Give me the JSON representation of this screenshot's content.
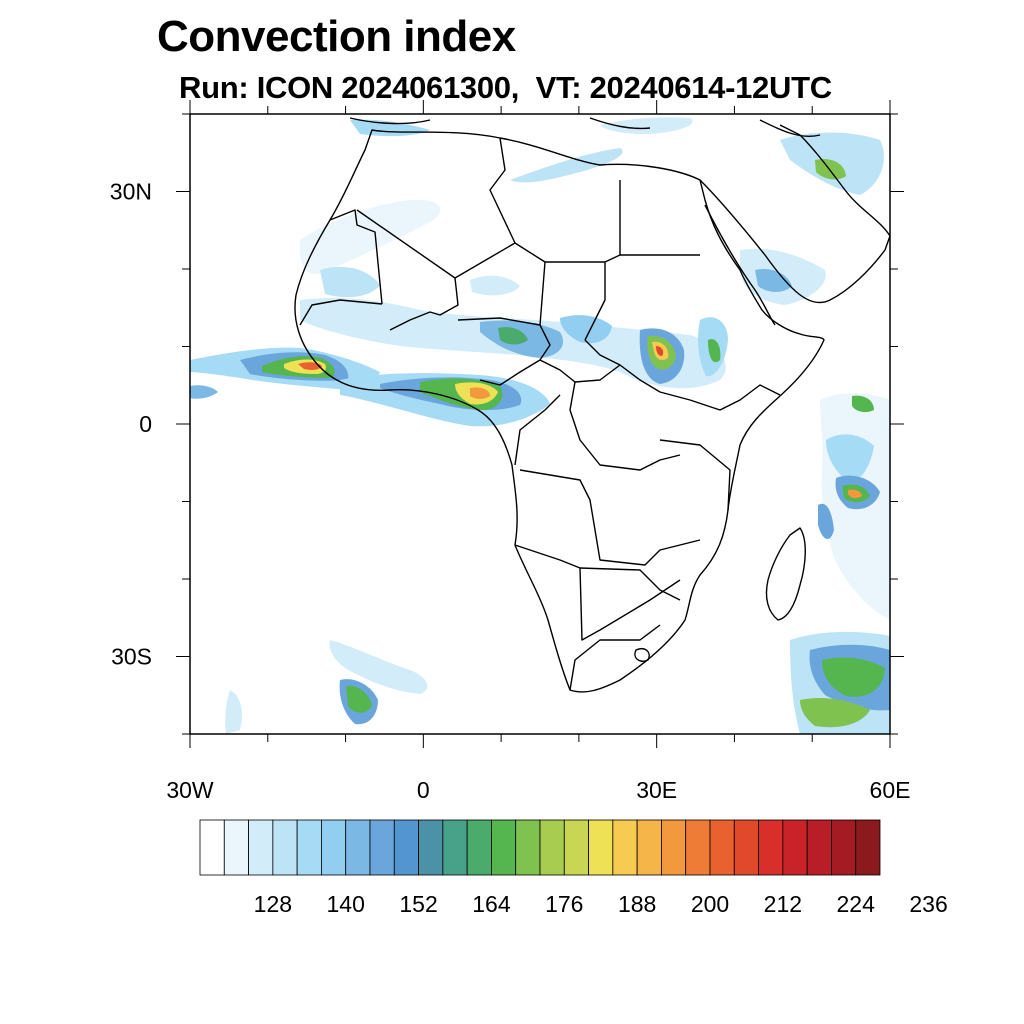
{
  "title": "Convection index",
  "subtitle": "Run: ICON 2024061300,  VT: 20240614-12UTC",
  "map": {
    "extent": {
      "lon_min": -30,
      "lon_max": 60,
      "lat_min": -40,
      "lat_max": 40
    },
    "lon_ticks": [
      {
        "value": -30,
        "label": "30W"
      },
      {
        "value": 0,
        "label": "0"
      },
      {
        "value": 30,
        "label": "30E"
      },
      {
        "value": 60,
        "label": "60E"
      }
    ],
    "lat_ticks": [
      {
        "value": 30,
        "label": "30N"
      },
      {
        "value": 0,
        "label": "0"
      },
      {
        "value": -30,
        "label": "30S"
      }
    ]
  },
  "legend": {
    "labels": [
      "128",
      "140",
      "152",
      "164",
      "176",
      "188",
      "200",
      "212",
      "224",
      "236"
    ],
    "colors": [
      "#ffffff",
      "#eaf5fc",
      "#d3ecf9",
      "#bde3f7",
      "#a6dbf5",
      "#92cef0",
      "#7cb8e4",
      "#6aa6dc",
      "#5295cf",
      "#4b91a8",
      "#48a28a",
      "#4aab6c",
      "#55b54e",
      "#80c24f",
      "#a8cc50",
      "#c8d653",
      "#eee155",
      "#f7ca52",
      "#f5b548",
      "#f2983d",
      "#ee7c36",
      "#e8612f",
      "#e04a2b",
      "#d82f2a",
      "#c92329",
      "#b91d27",
      "#a51b24",
      "#8a1a1e"
    ]
  }
}
